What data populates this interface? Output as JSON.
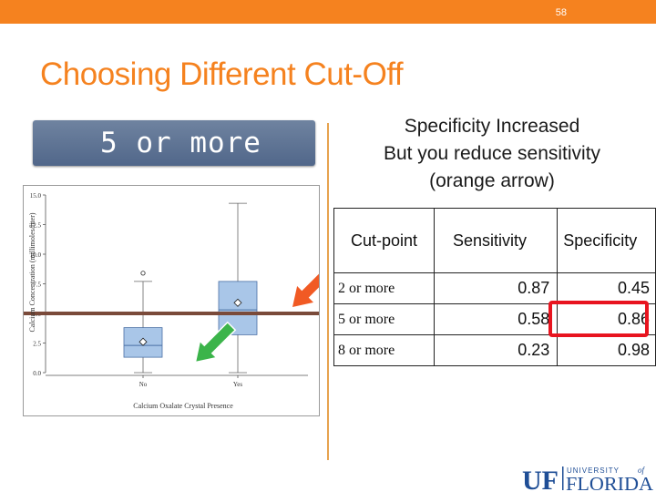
{
  "slide": {
    "number": "58",
    "title": "Choosing Different Cut-Off"
  },
  "badge": {
    "text": "5 or more"
  },
  "caption": {
    "line1": "Specificity Increased",
    "line2": "But you reduce sensitivity",
    "line3": "(orange arrow)"
  },
  "table": {
    "headers": [
      "Cut-point",
      "Sensitivity",
      "Specificity"
    ],
    "rows": [
      {
        "cut": "2 or more",
        "sensitivity": "0.87",
        "specificity": "0.45"
      },
      {
        "cut": "5 or more",
        "sensitivity": "0.58",
        "specificity": "0.86"
      },
      {
        "cut": "8 or more",
        "sensitivity": "0.23",
        "specificity": "0.98"
      }
    ],
    "highlight_color": "#e8141f"
  },
  "chart_data": {
    "type": "box",
    "xlabel": "Calcium Oxalate Crystal Presence",
    "ylabel": "Calcium Concentration (millimoles/liter)",
    "ylim": [
      0,
      15
    ],
    "yticks": [
      "0.0",
      "2.5",
      "5.0",
      "7.5",
      "10.0",
      "12.5",
      "15.0"
    ],
    "categories": [
      "No",
      "Yes"
    ],
    "boxes": [
      {
        "category": "No",
        "whisker_low": 0.0,
        "q1": 1.3,
        "median": 2.3,
        "q3": 3.8,
        "whisker_high": 7.7,
        "mean": 2.6,
        "outliers": [
          8.4
        ]
      },
      {
        "category": "Yes",
        "whisker_low": 0.0,
        "q1": 3.2,
        "median": 5.3,
        "q3": 7.7,
        "whisker_high": 14.3,
        "mean": 5.9,
        "outliers": []
      }
    ],
    "cutoff": 5.0,
    "colors": {
      "box": "#a9c6e8",
      "box_edge": "#4a6fa5",
      "cutoff_line": "#7a4a3a",
      "orange_arrow": "#f15a24",
      "green_arrow": "#3bb44a"
    }
  },
  "logo": {
    "text_uf": "UF",
    "text_university": "UNIVERSITY",
    "text_of": "of",
    "text_florida": "FLORIDA",
    "color": "#1f4e96"
  },
  "colors": {
    "accent": "#f5821f",
    "badge": "#5f7596"
  }
}
